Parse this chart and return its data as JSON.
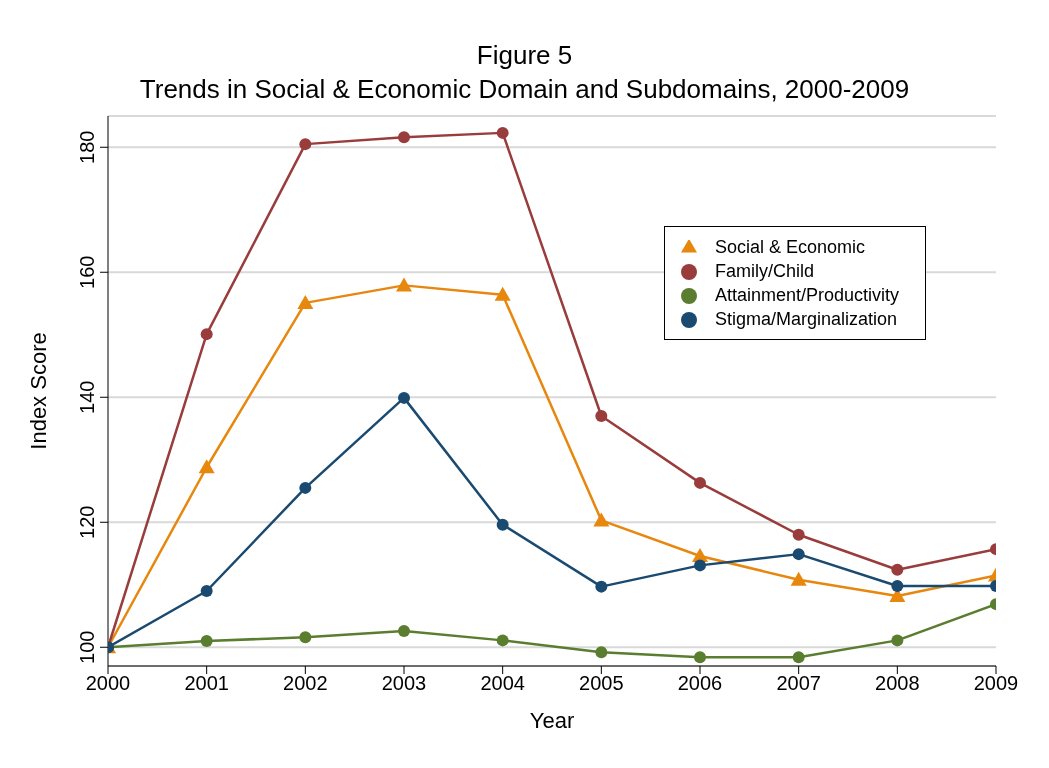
{
  "chart_data": {
    "type": "line",
    "title": "Figure 5",
    "subtitle": "Trends in Social & Economic Domain and Subdomains, 2000-2009",
    "xlabel": "Year",
    "ylabel": "Index Score",
    "x": [
      2000,
      2001,
      2002,
      2003,
      2004,
      2005,
      2006,
      2007,
      2008,
      2009
    ],
    "xlim": [
      2000,
      2009
    ],
    "xticks": [
      2000,
      2001,
      2002,
      2003,
      2004,
      2005,
      2006,
      2007,
      2008,
      2009
    ],
    "ylim": [
      97,
      185
    ],
    "yticks": [
      100,
      120,
      140,
      160,
      180
    ],
    "grid": "y",
    "legend": "top right",
    "series": [
      {
        "name": "Social & Economic",
        "color": "#e8870e",
        "marker": "triangle",
        "values": [
          100,
          128.8,
          155.1,
          157.9,
          156.4,
          120.3,
          114.6,
          110.8,
          108.2,
          111.5
        ]
      },
      {
        "name": "Family/Child",
        "color": "#993c3c",
        "marker": "circle",
        "values": [
          100,
          150.1,
          180.5,
          181.6,
          182.3,
          137.0,
          126.3,
          118.0,
          112.4,
          115.7
        ]
      },
      {
        "name": "Attainment/Productivity",
        "color": "#5a7d2f",
        "marker": "circle",
        "values": [
          100,
          101.0,
          101.6,
          102.6,
          101.1,
          99.2,
          98.4,
          98.4,
          101.1,
          106.9
        ]
      },
      {
        "name": "Stigma/Marginalization",
        "color": "#1a4a70",
        "marker": "circle",
        "values": [
          100,
          109.0,
          125.5,
          139.9,
          119.6,
          109.7,
          113.1,
          114.9,
          109.8,
          109.8
        ]
      }
    ]
  }
}
